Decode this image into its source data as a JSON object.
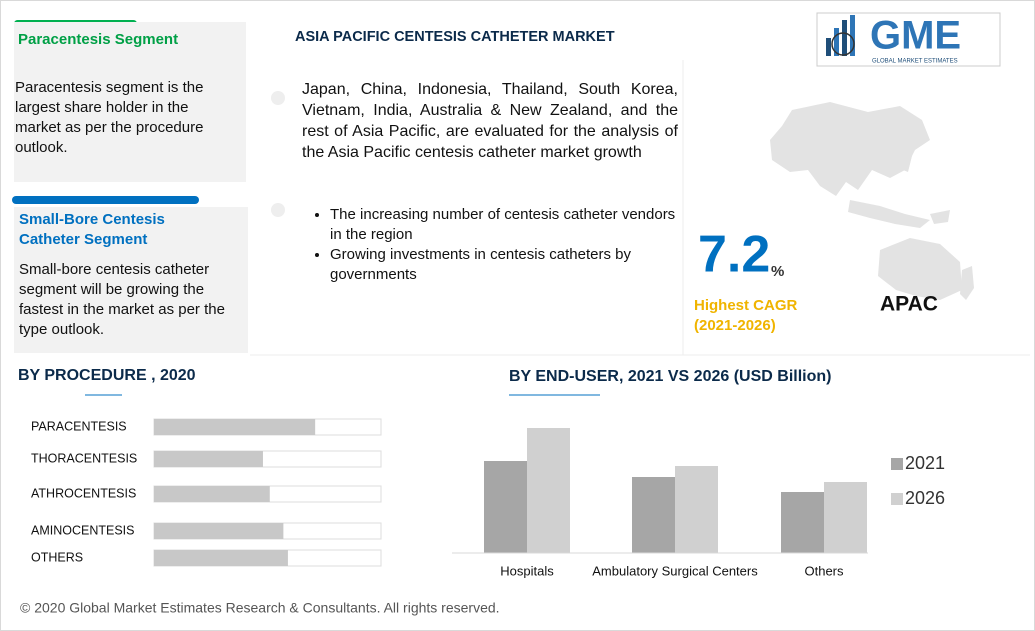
{
  "header": {
    "title": "ASIA PACIFIC CENTESIS CATHETER MARKET",
    "logo": "GME",
    "logo_tagline": "GLOBAL MARKET ESTIMATES"
  },
  "segments": [
    {
      "title": "Paracentesis Segment",
      "text": "Paracentesis segment is the largest share holder in the market as per the procedure outlook."
    },
    {
      "title": "Small-Bore Centesis Catheter Segment",
      "text": "Small-bore centesis catheter segment will be growing the fastest in the market as per the type outlook."
    }
  ],
  "intro": "Japan, China, Indonesia, Thailand, South Korea, Vietnam, India, Australia & New Zealand, and the rest of Asia Pacific, are evaluated for the analysis of the Asia Pacific centesis catheter market  growth",
  "bullets": [
    "The increasing number of centesis catheter vendors in the region",
    "Growing investments in centesis catheters by governments"
  ],
  "highlight": {
    "value": "7.2",
    "unit": "%",
    "label": "Highest CAGR (2021-2026)",
    "region": "APAC"
  },
  "chart_data": [
    {
      "type": "bar",
      "horizontal": true,
      "title": "BY PROCEDURE , 2020",
      "categories": [
        "PARACENTESIS",
        "THORACENTESIS",
        "ATHROCENTESIS",
        "AMINOCENTESIS",
        "OTHERS"
      ],
      "values": [
        71,
        48,
        51,
        57,
        59
      ],
      "xlim": [
        0,
        100
      ],
      "color": "#c8c8c8"
    },
    {
      "type": "bar",
      "title": "BY END-USER,  2021 VS 2026 (USD Billion)",
      "categories": [
        "Hospitals",
        "Ambulatory Surgical Centers",
        "Others"
      ],
      "series": [
        {
          "name": "2021",
          "color": "#a6a6a6",
          "values": [
            9.2,
            7.6,
            6.1
          ]
        },
        {
          "name": "2026",
          "color": "#d0d0d0",
          "values": [
            12.5,
            8.7,
            7.1
          ]
        }
      ],
      "ylim": [
        0,
        14
      ]
    }
  ],
  "footer": "© 2020 Global Market Estimates Research & Consultants. All rights reserved."
}
